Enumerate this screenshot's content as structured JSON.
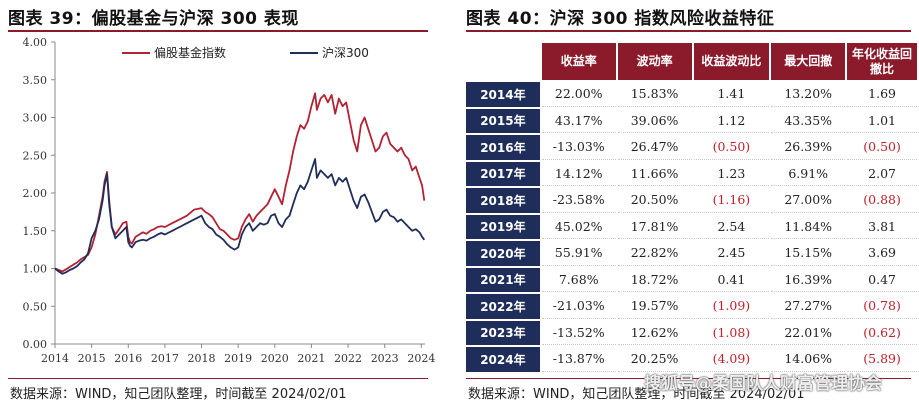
{
  "left": {
    "title": "图表 39：偏股基金与沪深 300 表现",
    "source": "数据来源：WIND，知己团队整理，时间截至 2024/02/01"
  },
  "right": {
    "title": "图表 40：沪深 300 指数风险收益特征",
    "source": "数据来源：WIND，知己团队整理，时间截至 2024/02/01"
  },
  "watermark": "搜狐号@柔国队人财富管理协会",
  "colors": {
    "fund": "#b22232",
    "hs300": "#1f2d5a",
    "header": "#8b1a2b",
    "year": "#1f2d5a",
    "negative": "#c0202a"
  },
  "chart_data": [
    {
      "type": "line",
      "title": "",
      "xlabel": "",
      "ylabel": "",
      "ylim": [
        0,
        4
      ],
      "yticks": [
        "0.00",
        "0.50",
        "1.00",
        "1.50",
        "2.00",
        "2.50",
        "3.00",
        "3.50",
        "4.00"
      ],
      "xticks": [
        "2014",
        "2015",
        "2016",
        "2017",
        "2018",
        "2019",
        "2020",
        "2021",
        "2022",
        "2023",
        "2024"
      ],
      "xlim": [
        2014,
        2024.1
      ],
      "legend": "top-left",
      "grid": false,
      "series": [
        {
          "name": "偏股基金指数",
          "x": [
            2014.0,
            2014.1,
            2014.2,
            2014.3,
            2014.4,
            2014.5,
            2014.6,
            2014.7,
            2014.8,
            2014.9,
            2015.0,
            2015.1,
            2015.2,
            2015.3,
            2015.35,
            2015.42,
            2015.48,
            2015.55,
            2015.65,
            2015.75,
            2015.85,
            2015.95,
            2016.0,
            2016.05,
            2016.1,
            2016.2,
            2016.3,
            2016.4,
            2016.5,
            2016.6,
            2016.7,
            2016.8,
            2016.9,
            2017.0,
            2017.2,
            2017.4,
            2017.6,
            2017.8,
            2018.0,
            2018.1,
            2018.2,
            2018.3,
            2018.4,
            2018.5,
            2018.6,
            2018.7,
            2018.8,
            2018.9,
            2019.0,
            2019.1,
            2019.2,
            2019.3,
            2019.4,
            2019.5,
            2019.6,
            2019.7,
            2019.8,
            2019.9,
            2020.0,
            2020.1,
            2020.2,
            2020.3,
            2020.4,
            2020.5,
            2020.6,
            2020.7,
            2020.8,
            2020.9,
            2021.0,
            2021.1,
            2021.15,
            2021.25,
            2021.35,
            2021.45,
            2021.55,
            2021.65,
            2021.75,
            2021.85,
            2021.95,
            2022.05,
            2022.15,
            2022.25,
            2022.35,
            2022.45,
            2022.55,
            2022.65,
            2022.75,
            2022.85,
            2022.95,
            2023.05,
            2023.15,
            2023.25,
            2023.35,
            2023.45,
            2023.55,
            2023.65,
            2023.75,
            2023.85,
            2023.95,
            2024.02,
            2024.08
          ],
          "values": [
            1.0,
            0.98,
            0.96,
            0.99,
            1.02,
            1.05,
            1.08,
            1.12,
            1.15,
            1.18,
            1.28,
            1.45,
            1.7,
            1.95,
            2.15,
            2.28,
            1.9,
            1.55,
            1.45,
            1.52,
            1.6,
            1.62,
            1.42,
            1.35,
            1.33,
            1.42,
            1.45,
            1.48,
            1.46,
            1.5,
            1.52,
            1.55,
            1.56,
            1.55,
            1.6,
            1.65,
            1.7,
            1.78,
            1.8,
            1.75,
            1.72,
            1.68,
            1.6,
            1.52,
            1.5,
            1.45,
            1.4,
            1.38,
            1.4,
            1.55,
            1.65,
            1.72,
            1.62,
            1.7,
            1.75,
            1.8,
            1.85,
            1.95,
            2.05,
            1.95,
            1.85,
            2.1,
            2.3,
            2.55,
            2.75,
            2.9,
            2.85,
            2.95,
            3.15,
            3.32,
            3.1,
            3.25,
            3.3,
            3.2,
            3.3,
            3.05,
            3.25,
            3.15,
            3.2,
            2.95,
            2.7,
            2.55,
            2.9,
            3.0,
            2.85,
            2.7,
            2.55,
            2.6,
            2.75,
            2.8,
            2.65,
            2.6,
            2.55,
            2.6,
            2.5,
            2.45,
            2.3,
            2.35,
            2.2,
            2.1,
            1.9
          ]
        },
        {
          "name": "沪深300",
          "x": [
            2014.0,
            2014.1,
            2014.2,
            2014.3,
            2014.4,
            2014.5,
            2014.6,
            2014.7,
            2014.8,
            2014.9,
            2015.0,
            2015.1,
            2015.2,
            2015.3,
            2015.35,
            2015.42,
            2015.48,
            2015.55,
            2015.65,
            2015.75,
            2015.85,
            2015.95,
            2016.0,
            2016.05,
            2016.1,
            2016.2,
            2016.3,
            2016.4,
            2016.5,
            2016.6,
            2016.7,
            2016.8,
            2016.9,
            2017.0,
            2017.2,
            2017.4,
            2017.6,
            2017.8,
            2018.0,
            2018.1,
            2018.2,
            2018.3,
            2018.4,
            2018.5,
            2018.6,
            2018.7,
            2018.8,
            2018.9,
            2019.0,
            2019.1,
            2019.2,
            2019.3,
            2019.4,
            2019.5,
            2019.6,
            2019.7,
            2019.8,
            2019.9,
            2020.0,
            2020.1,
            2020.2,
            2020.3,
            2020.4,
            2020.5,
            2020.6,
            2020.7,
            2020.8,
            2020.9,
            2021.0,
            2021.1,
            2021.15,
            2021.25,
            2021.35,
            2021.45,
            2021.55,
            2021.65,
            2021.75,
            2021.85,
            2021.95,
            2022.05,
            2022.15,
            2022.25,
            2022.35,
            2022.45,
            2022.55,
            2022.65,
            2022.75,
            2022.85,
            2022.95,
            2023.05,
            2023.15,
            2023.25,
            2023.35,
            2023.45,
            2023.55,
            2023.65,
            2023.75,
            2023.85,
            2023.95,
            2024.02,
            2024.08
          ],
          "values": [
            1.0,
            0.96,
            0.93,
            0.95,
            0.98,
            1.0,
            1.03,
            1.08,
            1.12,
            1.2,
            1.4,
            1.5,
            1.65,
            1.9,
            2.1,
            2.25,
            1.85,
            1.55,
            1.4,
            1.45,
            1.5,
            1.55,
            1.35,
            1.3,
            1.28,
            1.35,
            1.37,
            1.38,
            1.37,
            1.4,
            1.42,
            1.45,
            1.47,
            1.45,
            1.5,
            1.55,
            1.6,
            1.65,
            1.7,
            1.6,
            1.55,
            1.52,
            1.45,
            1.42,
            1.38,
            1.32,
            1.28,
            1.25,
            1.28,
            1.45,
            1.55,
            1.6,
            1.5,
            1.55,
            1.6,
            1.58,
            1.6,
            1.7,
            1.72,
            1.6,
            1.55,
            1.65,
            1.7,
            1.85,
            2.0,
            2.1,
            2.05,
            2.15,
            2.3,
            2.45,
            2.2,
            2.3,
            2.25,
            2.2,
            2.25,
            2.1,
            2.2,
            2.15,
            2.2,
            2.05,
            1.9,
            1.8,
            1.95,
            1.98,
            1.88,
            1.75,
            1.62,
            1.65,
            1.75,
            1.78,
            1.7,
            1.68,
            1.62,
            1.65,
            1.6,
            1.55,
            1.5,
            1.52,
            1.48,
            1.42,
            1.38
          ]
        }
      ]
    },
    {
      "type": "table",
      "columns": [
        "收益率",
        "波动率",
        "收益波动比",
        "最大回撤",
        "年化收益回撤比"
      ],
      "rows": [
        {
          "year": "2014年",
          "ret": "22.00%",
          "vol": "15.83%",
          "rv": "1.41",
          "mdd": "13.20%",
          "rd": "1.69"
        },
        {
          "year": "2015年",
          "ret": "43.17%",
          "vol": "39.06%",
          "rv": "1.12",
          "mdd": "43.35%",
          "rd": "1.01"
        },
        {
          "year": "2016年",
          "ret": "-13.03%",
          "vol": "26.47%",
          "rv": "(0.50)",
          "mdd": "26.39%",
          "rd": "(0.50)"
        },
        {
          "year": "2017年",
          "ret": "14.12%",
          "vol": "11.66%",
          "rv": "1.23",
          "mdd": "6.91%",
          "rd": "2.07"
        },
        {
          "year": "2018年",
          "ret": "-23.58%",
          "vol": "20.50%",
          "rv": "(1.16)",
          "mdd": "27.00%",
          "rd": "(0.88)"
        },
        {
          "year": "2019年",
          "ret": "45.02%",
          "vol": "17.81%",
          "rv": "2.54",
          "mdd": "11.84%",
          "rd": "3.81"
        },
        {
          "year": "2020年",
          "ret": "55.91%",
          "vol": "22.82%",
          "rv": "2.45",
          "mdd": "15.15%",
          "rd": "3.69"
        },
        {
          "year": "2021年",
          "ret": "7.68%",
          "vol": "18.72%",
          "rv": "0.41",
          "mdd": "16.39%",
          "rd": "0.47"
        },
        {
          "year": "2022年",
          "ret": "-21.03%",
          "vol": "19.57%",
          "rv": "(1.09)",
          "mdd": "27.27%",
          "rd": "(0.78)"
        },
        {
          "year": "2023年",
          "ret": "-13.52%",
          "vol": "12.62%",
          "rv": "(1.08)",
          "mdd": "22.01%",
          "rd": "(0.62)"
        },
        {
          "year": "2024年",
          "ret": "-13.87%",
          "vol": "20.25%",
          "rv": "(4.09)",
          "mdd": "14.06%",
          "rd": "(5.89)"
        }
      ]
    }
  ]
}
